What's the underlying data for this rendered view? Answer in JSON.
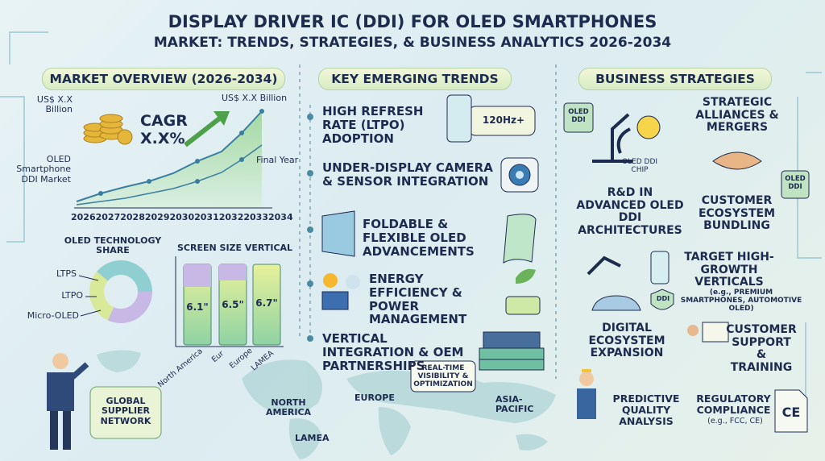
{
  "header": {
    "title": "DISPLAY DRIVER IC (DDI) FOR OLED SMARTPHONES",
    "subtitle": "MARKET: TRENDS, STRATEGIES, & BUSINESS ANALYTICS 2026-2034"
  },
  "market_overview": {
    "heading": "MARKET OVERVIEW (2026-2034)",
    "start_value": "US$ X.X Billion",
    "end_value": "US$ X.X Billion",
    "cagr_label": "CAGR",
    "cagr_value": "X.X%",
    "y_label": "OLED Smartphone DDI Market",
    "final_year": "Final Year",
    "years": [
      "2026",
      "2027",
      "2028",
      "2029",
      "2030",
      "2031",
      "2032",
      "2033",
      "2034"
    ]
  },
  "technology_share": {
    "title": "OLED TECHNOLOGY SHARE",
    "segments": [
      "LTPS",
      "LTPO",
      "Micro-OLED"
    ]
  },
  "screen_size": {
    "title": "SCREEN SIZE VERTICAL",
    "sizes": [
      "6.1\"",
      "6.5\"",
      "6.7\""
    ],
    "regions": [
      "North America",
      "Eur",
      "Europe",
      "LAMEA"
    ]
  },
  "global_network": "GLOBAL SUPPLIER NETWORK",
  "map_labels": [
    "NORTH AMERICA",
    "EUROPE",
    "ASIA-PACIFIC",
    "LAMEA"
  ],
  "trends": {
    "heading": "KEY EMERGING TRENDS",
    "items": [
      "HIGH REFRESH RATE (LTPO) ADOPTION",
      "UNDER-DISPLAY CAMERA & SENSOR INTEGRATION",
      "FOLDABLE & FLEXIBLE OLED ADVANCEMENTS",
      "ENERGY EFFICIENCY & POWER MANAGEMENT",
      "VERTICAL INTEGRATION & OEM PARTNERSHIPS"
    ],
    "badge": "120Hz+",
    "realtime": "REAL-TIME VISIBILITY & OPTIMIZATION"
  },
  "strategies": {
    "heading": "BUSINESS STRATEGIES",
    "items": [
      "R&D IN ADVANCED OLED DDI ARCHITECTURES",
      "STRATEGIC ALLIANCES & MERGERS",
      "CUSTOMER ECOSYSTEM BUNDLING",
      "TARGET HIGH-GROWTH VERTICALS",
      "CUSTOMER SUPPORT & TRAINING",
      "DIGITAL ECOSYSTEM EXPANSION",
      "PREDICTIVE QUALITY ANALYSIS",
      "REGULATORY COMPLIANCE"
    ],
    "verticals_note": "(e.g., PREMIUM SMARTPHONES, AUTOMOTIVE OLED)",
    "compliance_note": "(e.g., FCC, CE)",
    "chip_labels": [
      "OLED DDI",
      "OLED DDI CHIP",
      "OLED DDI",
      "DDI"
    ],
    "ce_mark": "CE"
  }
}
